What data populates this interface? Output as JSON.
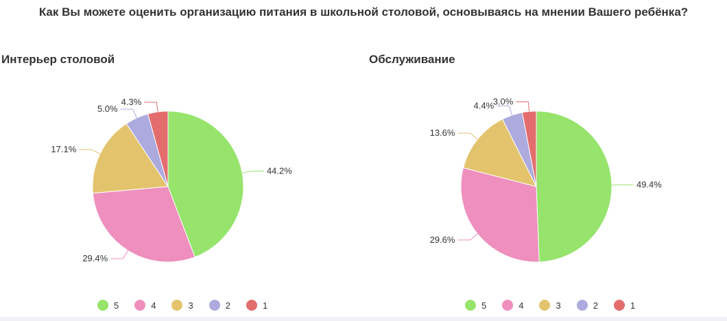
{
  "title": "Как Вы можете оценить организацию питания в школьной столовой, основываясь на мнении Вашего ребёнка?",
  "colors": {
    "5": "#96e46c",
    "4": "#ee8fbd",
    "3": "#e3c46d",
    "2": "#adaade",
    "1": "#e36d6d"
  },
  "chart_data": [
    {
      "type": "pie",
      "title": "Интерьер столовой",
      "categories": [
        "5",
        "4",
        "3",
        "2",
        "1"
      ],
      "values": [
        44.2,
        29.4,
        17.1,
        5.0,
        4.3
      ],
      "labels": [
        "44.2%",
        "29.4%",
        "17.1%",
        "5.0%",
        "4.3%"
      ],
      "legend": [
        "5",
        "4",
        "3",
        "2",
        "1"
      ],
      "legend_position": "bottom"
    },
    {
      "type": "pie",
      "title": "Обслуживание",
      "categories": [
        "5",
        "4",
        "3",
        "2",
        "1"
      ],
      "values": [
        49.4,
        29.6,
        13.6,
        4.4,
        3.0
      ],
      "labels": [
        "49.4%",
        "29.6%",
        "13.6%",
        "4.4%",
        "3.0%"
      ],
      "legend": [
        "5",
        "4",
        "3",
        "2",
        "1"
      ],
      "legend_position": "bottom"
    }
  ]
}
